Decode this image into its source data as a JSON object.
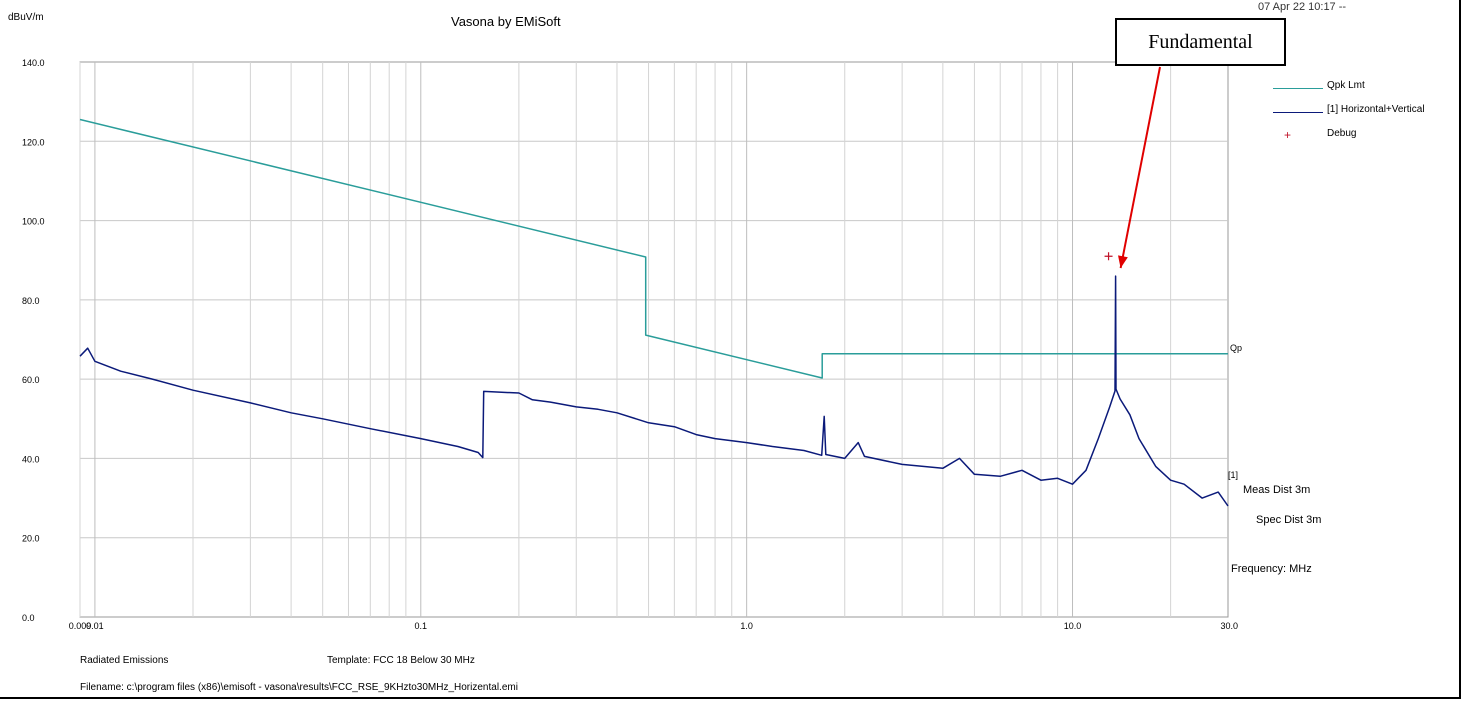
{
  "header": {
    "title": "Vasona by EMiSoft",
    "timestamp": "07 Apr 22 10:17 --",
    "y_unit": "dBuV/m"
  },
  "annotation": {
    "label": "Fundamental",
    "color": "#e00000",
    "target_x_mhz": 13.56,
    "target_y_db": 86
  },
  "right_labels": {
    "qp": "Qp",
    "trace_tag": "[1]",
    "meas_dist": "Meas Dist 3m",
    "spec_dist": "Spec Dist 3m",
    "frequency": "Frequency: MHz"
  },
  "footer": {
    "test_type": "Radiated Emissions",
    "template": "Template: FCC 18 Below 30 MHz",
    "filename": "Filename: c:\\program files (x86)\\emisoft - vasona\\results\\FCC_RSE_9KHzto30MHz_Horizental.emi"
  },
  "chart_data": {
    "type": "line",
    "title": "Vasona by EMiSoft",
    "ylabel": "dBuV/m",
    "xlabel": "Frequency: MHz",
    "x_scale": "log",
    "xlim": [
      0.009,
      30.0
    ],
    "ylim": [
      0,
      140
    ],
    "grid": true,
    "legend_position": "top-right",
    "y_ticks": [
      {
        "value": 0,
        "label": "0.0"
      },
      {
        "value": 20,
        "label": "20.0"
      },
      {
        "value": 40,
        "label": "40.0"
      },
      {
        "value": 60,
        "label": "60.0"
      },
      {
        "value": 80,
        "label": "80.0"
      },
      {
        "value": 100,
        "label": "100.0"
      },
      {
        "value": 120,
        "label": "120.0"
      },
      {
        "value": 140,
        "label": "140.0"
      }
    ],
    "x_ticks": [
      {
        "value": 0.009,
        "label": "0.009"
      },
      {
        "value": 0.01,
        "label": "0.01"
      },
      {
        "value": 0.1,
        "label": "0.1"
      },
      {
        "value": 1.0,
        "label": "1.0"
      },
      {
        "value": 10.0,
        "label": "10.0"
      },
      {
        "value": 30.0,
        "label": "30.0"
      }
    ],
    "series": [
      {
        "name": "Qpk Lmt",
        "color": "#2a9d9a",
        "points": [
          [
            0.009,
            125.5
          ],
          [
            0.49,
            90.8
          ],
          [
            0.49,
            71.1
          ],
          [
            1.705,
            60.3
          ],
          [
            1.705,
            66.4
          ],
          [
            30.0,
            66.4
          ]
        ]
      },
      {
        "name": "[1] Horizontal+Vertical",
        "color": "#0b1a7a",
        "points": [
          [
            0.009,
            65.8
          ],
          [
            0.0095,
            67.8
          ],
          [
            0.01,
            64.5
          ],
          [
            0.012,
            62.0
          ],
          [
            0.015,
            60.0
          ],
          [
            0.02,
            57.2
          ],
          [
            0.03,
            54.0
          ],
          [
            0.04,
            51.5
          ],
          [
            0.05,
            50.0
          ],
          [
            0.07,
            47.5
          ],
          [
            0.1,
            45.0
          ],
          [
            0.13,
            43.0
          ],
          [
            0.15,
            41.5
          ],
          [
            0.155,
            40.2
          ],
          [
            0.156,
            56.9
          ],
          [
            0.165,
            56.8
          ],
          [
            0.2,
            56.5
          ],
          [
            0.22,
            54.8
          ],
          [
            0.25,
            54.2
          ],
          [
            0.3,
            53.0
          ],
          [
            0.35,
            52.4
          ],
          [
            0.4,
            51.5
          ],
          [
            0.5,
            49.0
          ],
          [
            0.6,
            48.0
          ],
          [
            0.7,
            46.0
          ],
          [
            0.8,
            45.0
          ],
          [
            1.0,
            44.0
          ],
          [
            1.2,
            43.0
          ],
          [
            1.5,
            42.0
          ],
          [
            1.7,
            40.8
          ],
          [
            1.73,
            50.6
          ],
          [
            1.75,
            41.0
          ],
          [
            2.0,
            40.0
          ],
          [
            2.2,
            44.0
          ],
          [
            2.3,
            40.5
          ],
          [
            3.0,
            38.5
          ],
          [
            4.0,
            37.5
          ],
          [
            4.5,
            40.0
          ],
          [
            5.0,
            36.0
          ],
          [
            6.0,
            35.5
          ],
          [
            7.0,
            37.0
          ],
          [
            8.0,
            34.5
          ],
          [
            9.0,
            35.0
          ],
          [
            10.0,
            33.5
          ],
          [
            11.0,
            37.0
          ],
          [
            12.0,
            45.0
          ],
          [
            13.0,
            53.0
          ],
          [
            13.5,
            57.0
          ],
          [
            13.56,
            86.0
          ],
          [
            13.6,
            57.5
          ],
          [
            14.0,
            55.0
          ],
          [
            15.0,
            51.0
          ],
          [
            16.0,
            45.0
          ],
          [
            18.0,
            38.0
          ],
          [
            20.0,
            34.5
          ],
          [
            22.0,
            33.5
          ],
          [
            25.0,
            30.0
          ],
          [
            28.0,
            31.5
          ],
          [
            30.0,
            28.0
          ]
        ]
      },
      {
        "name": "Debug",
        "color": "#c0142a",
        "marker": "+",
        "points": [
          [
            12.9,
            91.0
          ]
        ]
      }
    ]
  }
}
